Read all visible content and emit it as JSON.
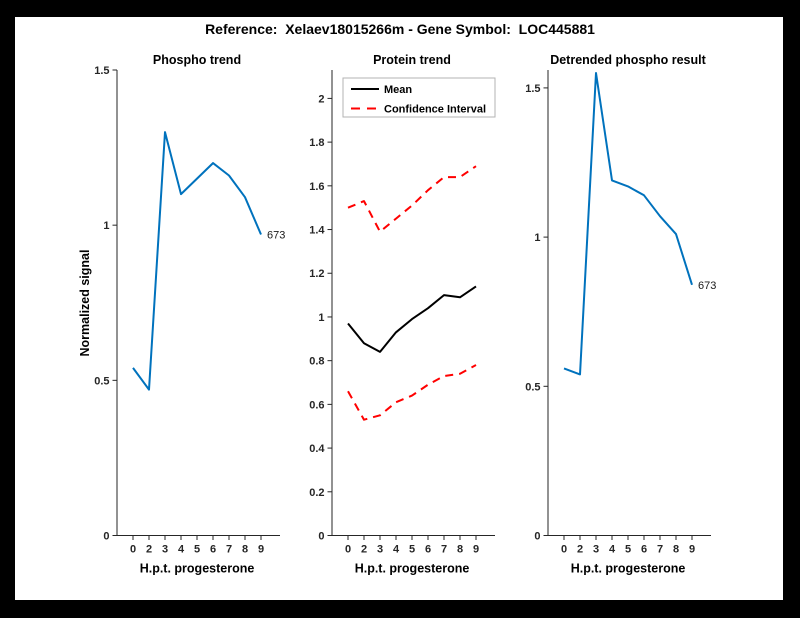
{
  "figure_title": "Reference:  Xelaev18015266m - Gene Symbol:  LOC445881",
  "colors": {
    "blue": "#0072BD",
    "red": "#FF0000",
    "black": "#000000",
    "axis": "#262626",
    "legend_border": "#B3B3B3",
    "paper": "#FFFFFF",
    "frame": "#000000"
  },
  "chart_data": [
    {
      "type": "line",
      "title": "Phospho trend",
      "xlabel": "H.p.t. progesterone",
      "ylabel": "Normalized signal",
      "x": [
        0,
        2,
        3,
        4,
        5,
        6,
        7,
        8,
        9
      ],
      "series": [
        {
          "name": "phospho-signal",
          "color": "blue",
          "style": "solid",
          "values": [
            0.54,
            0.47,
            1.3,
            1.1,
            1.15,
            1.2,
            1.16,
            1.09,
            0.97
          ]
        }
      ],
      "end_label": "673",
      "ylim": [
        0,
        1.5
      ],
      "yticks": [
        0,
        0.5,
        1,
        1.5
      ],
      "grid": false
    },
    {
      "type": "line",
      "title": "Protein trend",
      "xlabel": "H.p.t. progesterone",
      "ylabel": "",
      "x": [
        0,
        2,
        3,
        4,
        5,
        6,
        7,
        8,
        9
      ],
      "series": [
        {
          "name": "mean",
          "color": "black",
          "style": "solid",
          "values": [
            0.97,
            0.88,
            0.84,
            0.93,
            0.99,
            1.04,
            1.1,
            1.09,
            1.14
          ]
        },
        {
          "name": "confidence-upper",
          "color": "red",
          "style": "dashed",
          "values": [
            1.5,
            1.53,
            1.39,
            1.45,
            1.51,
            1.58,
            1.64,
            1.64,
            1.69
          ]
        },
        {
          "name": "confidence-lower",
          "color": "red",
          "style": "dashed",
          "values": [
            0.66,
            0.53,
            0.55,
            0.61,
            0.64,
            0.69,
            0.73,
            0.74,
            0.78
          ]
        }
      ],
      "legend": [
        {
          "label": "Mean",
          "color": "black",
          "style": "solid"
        },
        {
          "label": "Confidence Interval",
          "color": "red",
          "style": "dashed"
        }
      ],
      "legend_position": "northwest-inside",
      "ylim": [
        0,
        2.13
      ],
      "yticks": [
        0,
        0.2,
        0.4,
        0.6,
        0.8,
        1,
        1.2,
        1.4,
        1.6,
        1.8,
        2
      ],
      "grid": false
    },
    {
      "type": "line",
      "title": "Detrended phospho result",
      "xlabel": "H.p.t. progesterone",
      "ylabel": "",
      "x": [
        0,
        2,
        3,
        4,
        5,
        6,
        7,
        8,
        9
      ],
      "series": [
        {
          "name": "detrended-phospho",
          "color": "blue",
          "style": "solid",
          "values": [
            0.56,
            0.54,
            1.55,
            1.19,
            1.17,
            1.14,
            1.07,
            1.01,
            0.84
          ]
        }
      ],
      "end_label": "673",
      "ylim": [
        0,
        1.56
      ],
      "yticks": [
        0,
        0.5,
        1,
        1.5
      ],
      "grid": false
    }
  ]
}
